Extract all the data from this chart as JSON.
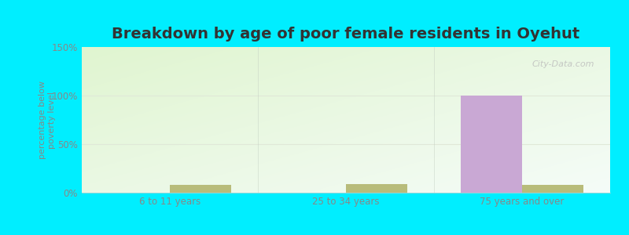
{
  "title": "Breakdown by age of poor female residents in Oyehut",
  "ylabel": "percentage below\npoverty level",
  "categories": [
    "6 to 11 years",
    "25 to 34 years",
    "75 years and over"
  ],
  "oyehut_values": [
    0,
    0,
    100
  ],
  "washington_values": [
    8,
    9,
    8
  ],
  "oyehut_color": "#c9a8d4",
  "washington_color": "#b8bc7a",
  "outer_bg": "#00eeff",
  "ylim": [
    0,
    150
  ],
  "yticks": [
    0,
    50,
    100,
    150
  ],
  "yticklabels": [
    "0%",
    "50%",
    "100%",
    "150%"
  ],
  "bar_width": 0.35,
  "title_fontsize": 14,
  "axis_label_fontsize": 8,
  "tick_fontsize": 8.5,
  "legend_fontsize": 9,
  "gradient_colors": [
    "#e0f5d0",
    "#f5fcf8"
  ],
  "grid_color": "#e0e8d8",
  "separator_color": "#c0ccc0"
}
